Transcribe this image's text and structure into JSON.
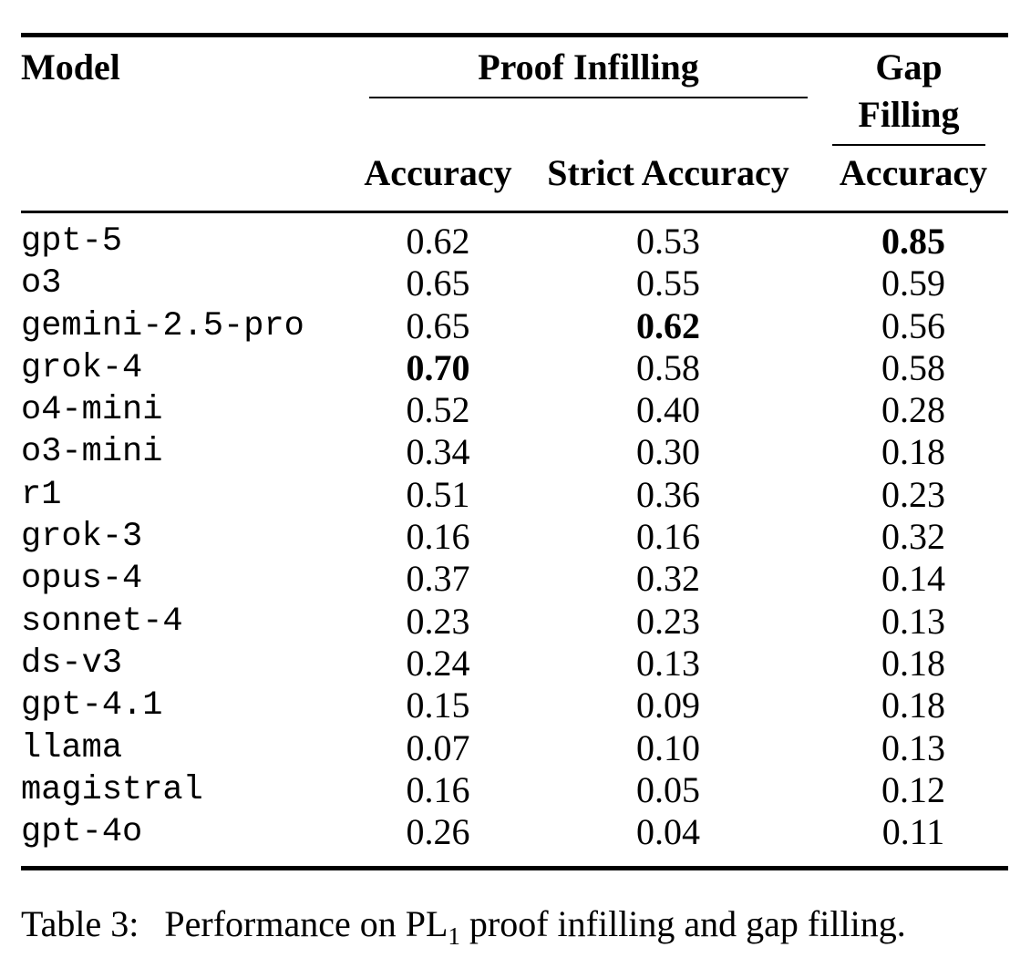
{
  "page": {
    "background_color": "#ffffff",
    "text_color": "#000000",
    "rule_color": "#000000"
  },
  "table": {
    "header": {
      "model_label": "Model",
      "group_proof_infilling": "Proof Infilling",
      "group_gap_filling": "Gap Filling",
      "sub_pi_accuracy": "Accuracy",
      "sub_pi_strict_accuracy": "Strict Accuracy",
      "sub_gf_accuracy": "Accuracy"
    },
    "rows": [
      {
        "model": "gpt-5",
        "acc": "0.62",
        "strict": "0.53",
        "gap": "0.85",
        "bold": "gap"
      },
      {
        "model": "o3",
        "acc": "0.65",
        "strict": "0.55",
        "gap": "0.59",
        "bold": null
      },
      {
        "model": "gemini-2.5-pro",
        "acc": "0.65",
        "strict": "0.62",
        "gap": "0.56",
        "bold": "strict"
      },
      {
        "model": "grok-4",
        "acc": "0.70",
        "strict": "0.58",
        "gap": "0.58",
        "bold": "acc"
      },
      {
        "model": "o4-mini",
        "acc": "0.52",
        "strict": "0.40",
        "gap": "0.28",
        "bold": null
      },
      {
        "model": "o3-mini",
        "acc": "0.34",
        "strict": "0.30",
        "gap": "0.18",
        "bold": null
      },
      {
        "model": "r1",
        "acc": "0.51",
        "strict": "0.36",
        "gap": "0.23",
        "bold": null
      },
      {
        "model": "grok-3",
        "acc": "0.16",
        "strict": "0.16",
        "gap": "0.32",
        "bold": null
      },
      {
        "model": "opus-4",
        "acc": "0.37",
        "strict": "0.32",
        "gap": "0.14",
        "bold": null
      },
      {
        "model": "sonnet-4",
        "acc": "0.23",
        "strict": "0.23",
        "gap": "0.13",
        "bold": null
      },
      {
        "model": "ds-v3",
        "acc": "0.24",
        "strict": "0.13",
        "gap": "0.18",
        "bold": null
      },
      {
        "model": "gpt-4.1",
        "acc": "0.15",
        "strict": "0.09",
        "gap": "0.18",
        "bold": null
      },
      {
        "model": "llama",
        "acc": "0.07",
        "strict": "0.10",
        "gap": "0.13",
        "bold": null
      },
      {
        "model": "magistral",
        "acc": "0.16",
        "strict": "0.05",
        "gap": "0.12",
        "bold": null
      },
      {
        "model": "gpt-4o",
        "acc": "0.26",
        "strict": "0.04",
        "gap": "0.11",
        "bold": null
      }
    ]
  },
  "caption": {
    "label": "Table 3:",
    "before_sub": "Performance on PL",
    "subscript": "1",
    "after_sub": " proof infilling and gap filling."
  }
}
